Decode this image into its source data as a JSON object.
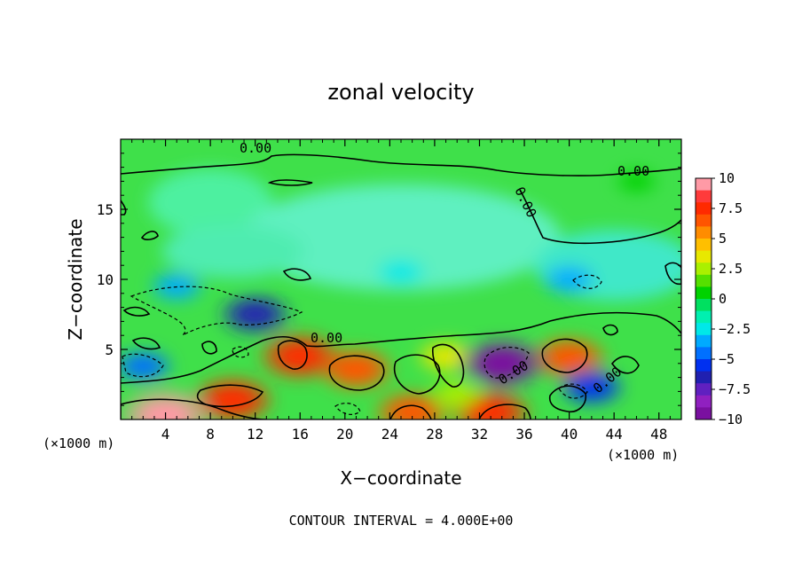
{
  "chart_data": {
    "type": "heatmap",
    "title": "zonal velocity",
    "xlabel": "X−coordinate",
    "ylabel": "Z−coordinate",
    "x_unit_left": "(×1000 m)",
    "x_unit_right": "(×1000 m)",
    "footer": "CONTOUR INTERVAL = 4.000E+00",
    "xlim": [
      0,
      50
    ],
    "ylim": [
      0,
      20
    ],
    "x_ticks": [
      4,
      8,
      12,
      16,
      20,
      24,
      28,
      32,
      36,
      40,
      44,
      48
    ],
    "y_ticks": [
      5,
      10,
      15
    ],
    "colorbar": {
      "ticks": [
        "10",
        "7.5",
        "5",
        "2.5",
        "0",
        "−2.5",
        "−5",
        "−7.5",
        "−10"
      ],
      "min": -10,
      "max": 10,
      "colors": [
        "#ff9aa6",
        "#ff3b3b",
        "#ff2a00",
        "#ff5500",
        "#ff8c00",
        "#ffbf00",
        "#e8e800",
        "#aaf000",
        "#55e000",
        "#00d200",
        "#00e060",
        "#00f0b0",
        "#00e8e8",
        "#00aaff",
        "#0070ff",
        "#0030f0",
        "#2020b0",
        "#6020c0",
        "#9020c0",
        "#7a10a0"
      ]
    },
    "contour_labels": [
      "0.00",
      "0.00",
      "0.00",
      "0.00",
      "0.00",
      "0.00"
    ],
    "features": [
      {
        "x": 16,
        "z": 4.5,
        "value": 8
      },
      {
        "x": 21,
        "z": 3.6,
        "value": 7
      },
      {
        "x": 10,
        "z": 1.4,
        "value": 8
      },
      {
        "x": 4,
        "z": 0.3,
        "value": 10
      },
      {
        "x": 40,
        "z": 4.4,
        "value": 7
      },
      {
        "x": 33,
        "z": 0.5,
        "value": 8
      },
      {
        "x": 26,
        "z": 0.5,
        "value": 7
      },
      {
        "x": 29,
        "z": 4.5,
        "value": 4
      },
      {
        "x": 34,
        "z": 4.0,
        "value": -9
      },
      {
        "x": 12,
        "z": 7.5,
        "value": -6
      },
      {
        "x": 42,
        "z": 2.3,
        "value": -5
      },
      {
        "x": 2,
        "z": 3.8,
        "value": -4
      },
      {
        "x": 5,
        "z": 9.5,
        "value": -3
      },
      {
        "x": 40,
        "z": 10,
        "value": -3
      },
      {
        "x": 25,
        "z": 10.5,
        "value": -2
      },
      {
        "x": 30,
        "z": 1.8,
        "value": 3
      },
      {
        "x": 46,
        "z": 17,
        "value": 1
      }
    ]
  }
}
